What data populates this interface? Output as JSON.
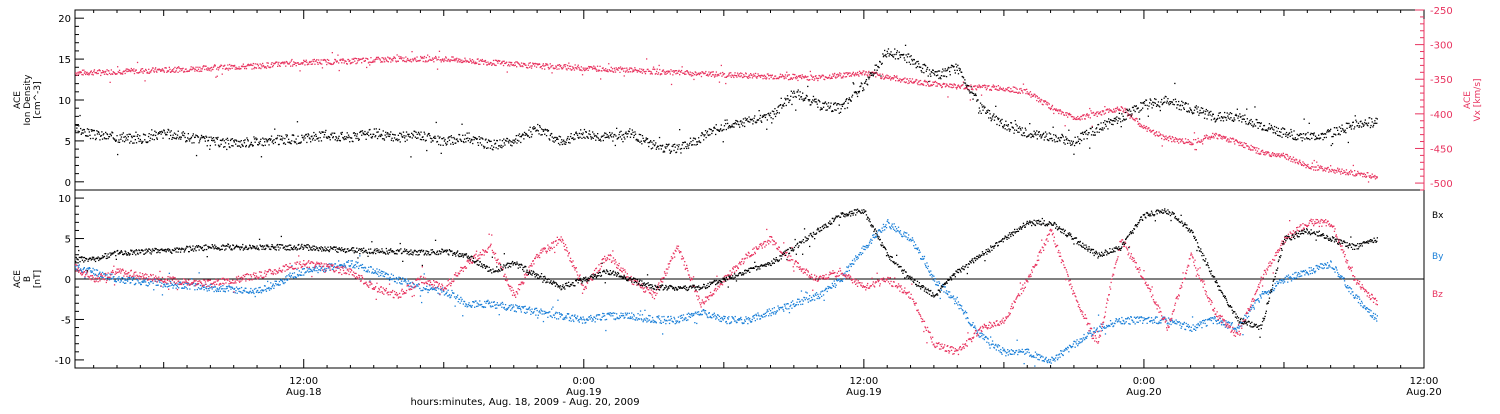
{
  "colors": {
    "black": "#000000",
    "red": "#e8335f",
    "blue": "#1a7fd8"
  },
  "xaxis": {
    "label": "hours:minutes, Aug. 18, 2009 - Aug. 20, 2009",
    "ticks": [
      {
        "x": 12,
        "time": "12:00",
        "date": "Aug.18"
      },
      {
        "x": 24,
        "time": "0:00",
        "date": "Aug.19"
      },
      {
        "x": 36,
        "time": "12:00",
        "date": "Aug.19"
      },
      {
        "x": 48,
        "time": "0:00",
        "date": "Aug.20"
      },
      {
        "x": 60,
        "time": "12:00",
        "date": "Aug.20"
      }
    ]
  },
  "chart_data": [
    {
      "type": "scatter",
      "xunit": "hours since Aug 18 00:00",
      "xlim": [
        2.2,
        60
      ],
      "ylabel": [
        "ACE",
        "Ion Density",
        "[cm^-3]"
      ],
      "ylim": [
        -1,
        21
      ],
      "yticks": [
        0,
        5,
        10,
        15,
        20
      ],
      "y2label": [
        "ACE",
        "Vx [km/s]"
      ],
      "y2lim": [
        -510,
        -250
      ],
      "y2ticks": [
        -250,
        -300,
        -350,
        -400,
        -450,
        -500
      ],
      "series": [
        {
          "name": "Ion Density",
          "color": "black",
          "axis": "left",
          "x": [
            2.2,
            3,
            4,
            5,
            6,
            7,
            8,
            9,
            10,
            11,
            12,
            13,
            14,
            15,
            16,
            17,
            18,
            19,
            20,
            21,
            22,
            23,
            24,
            25,
            26,
            27,
            28,
            29,
            30,
            31,
            32,
            33,
            34,
            35,
            36,
            37,
            38,
            39,
            40,
            41,
            42,
            43,
            44,
            45,
            46,
            47,
            48,
            49,
            50,
            51,
            52,
            53,
            54,
            55,
            56,
            57,
            58
          ],
          "y": [
            6.5,
            5.8,
            5.5,
            5.3,
            6,
            5.5,
            5,
            4.8,
            5,
            5.2,
            5.3,
            5.8,
            5.5,
            6,
            5.5,
            5.8,
            5,
            5.5,
            4.5,
            5,
            6.5,
            5,
            6,
            5.5,
            6,
            4.5,
            4,
            5.5,
            7,
            7.5,
            8,
            11,
            9.5,
            9,
            12,
            16,
            15,
            13,
            14,
            9,
            7,
            6,
            5.5,
            5,
            6.5,
            8,
            9.5,
            10,
            9,
            8,
            8,
            7,
            6,
            5.5,
            6,
            7,
            7.5
          ]
        },
        {
          "name": "Vx",
          "color": "red",
          "axis": "right",
          "x": [
            2.2,
            4,
            6,
            8,
            10,
            12,
            14,
            16,
            18,
            20,
            22,
            24,
            26,
            28,
            30,
            32,
            34,
            36,
            38,
            40,
            42,
            43,
            44,
            45,
            46,
            47,
            48,
            49,
            50,
            51,
            52,
            53,
            54,
            55,
            56,
            57,
            58
          ],
          "y": [
            -340,
            -338,
            -336,
            -333,
            -330,
            -325,
            -323,
            -320,
            -320,
            -325,
            -330,
            -333,
            -336,
            -340,
            -343,
            -345,
            -347,
            -340,
            -352,
            -360,
            -362,
            -368,
            -390,
            -405,
            -400,
            -390,
            -420,
            -435,
            -440,
            -430,
            -440,
            -455,
            -460,
            -475,
            -480,
            -485,
            -490
          ]
        }
      ]
    },
    {
      "type": "scatter",
      "xunit": "hours since Aug 18 00:00",
      "xlim": [
        2.2,
        60
      ],
      "ylabel": [
        "ACE",
        "B",
        "[nT]"
      ],
      "ylim": [
        -11,
        11
      ],
      "yticks": [
        -10,
        -5,
        0,
        5,
        10
      ],
      "legend": {
        "placement": "right",
        "entries": [
          "Bx",
          "By",
          "Bz"
        ]
      },
      "series": [
        {
          "name": "Bx",
          "color": "black",
          "x": [
            2.2,
            3,
            4,
            6,
            8,
            10,
            12,
            14,
            15,
            16,
            17,
            18,
            19,
            20,
            21,
            22,
            23,
            24,
            25,
            26,
            27,
            28,
            29,
            30,
            31,
            32,
            33,
            34,
            35,
            36,
            37,
            38,
            39,
            40,
            41,
            42,
            43,
            44,
            45,
            46,
            47,
            48,
            49,
            50,
            51,
            52,
            53,
            54,
            55,
            56,
            57,
            58
          ],
          "y": [
            2.5,
            2.5,
            3.3,
            3.6,
            4,
            4,
            4,
            3.6,
            3.5,
            3.5,
            3.3,
            3.5,
            3,
            1,
            2,
            0.5,
            -1,
            0,
            1,
            0,
            -1,
            -1,
            -1,
            0,
            1,
            2,
            4,
            6,
            8,
            8.5,
            3,
            0,
            -2,
            1,
            3,
            5,
            7,
            7,
            5,
            3,
            4,
            8,
            8.5,
            6,
            0,
            -5,
            -6,
            5,
            6,
            5,
            4,
            5
          ]
        },
        {
          "name": "By",
          "color": "blue",
          "x": [
            2.2,
            3,
            4,
            6,
            8,
            10,
            12,
            14,
            15,
            16,
            17,
            18,
            19,
            20,
            21,
            22,
            23,
            24,
            25,
            26,
            27,
            28,
            29,
            30,
            31,
            32,
            33,
            34,
            35,
            36,
            37,
            38,
            39,
            40,
            41,
            42,
            43,
            44,
            45,
            46,
            47,
            48,
            49,
            50,
            51,
            52,
            53,
            54,
            55,
            56,
            57,
            58
          ],
          "y": [
            1.5,
            1,
            0,
            -0.5,
            -1,
            -1.5,
            1,
            2,
            1,
            0,
            -1,
            -1.5,
            -3,
            -3,
            -3.5,
            -4,
            -4.5,
            -5,
            -4.5,
            -4.5,
            -5,
            -5,
            -4,
            -5,
            -5,
            -4,
            -3,
            -2,
            0,
            4,
            7,
            5,
            0,
            -3,
            -7,
            -9,
            -9,
            -10,
            -8,
            -6,
            -5,
            -5,
            -5,
            -6,
            -5,
            -6,
            -2,
            0,
            1,
            2,
            -2,
            -5
          ]
        },
        {
          "name": "Bz",
          "color": "red",
          "x": [
            2.2,
            3,
            4,
            6,
            8,
            10,
            12,
            14,
            15,
            16,
            17,
            18,
            19,
            20,
            21,
            22,
            23,
            24,
            25,
            26,
            27,
            28,
            29,
            30,
            31,
            32,
            33,
            34,
            35,
            36,
            37,
            38,
            39,
            40,
            41,
            42,
            43,
            44,
            45,
            46,
            47,
            48,
            49,
            50,
            51,
            52,
            53,
            54,
            55,
            56,
            57,
            58
          ],
          "y": [
            1.5,
            0,
            1,
            0,
            -0.5,
            0.5,
            2,
            1,
            -1,
            -2,
            0,
            -1,
            2,
            4,
            -2,
            3,
            5,
            -1,
            3,
            0,
            -2,
            4,
            -3,
            0,
            3,
            5,
            2,
            0,
            1,
            -1,
            0,
            -2,
            -8,
            -9,
            -6,
            -5,
            0,
            6,
            -2,
            -8,
            5,
            0,
            -6,
            3,
            -4,
            -7,
            0,
            5,
            7,
            7,
            0,
            -3
          ]
        }
      ]
    }
  ]
}
